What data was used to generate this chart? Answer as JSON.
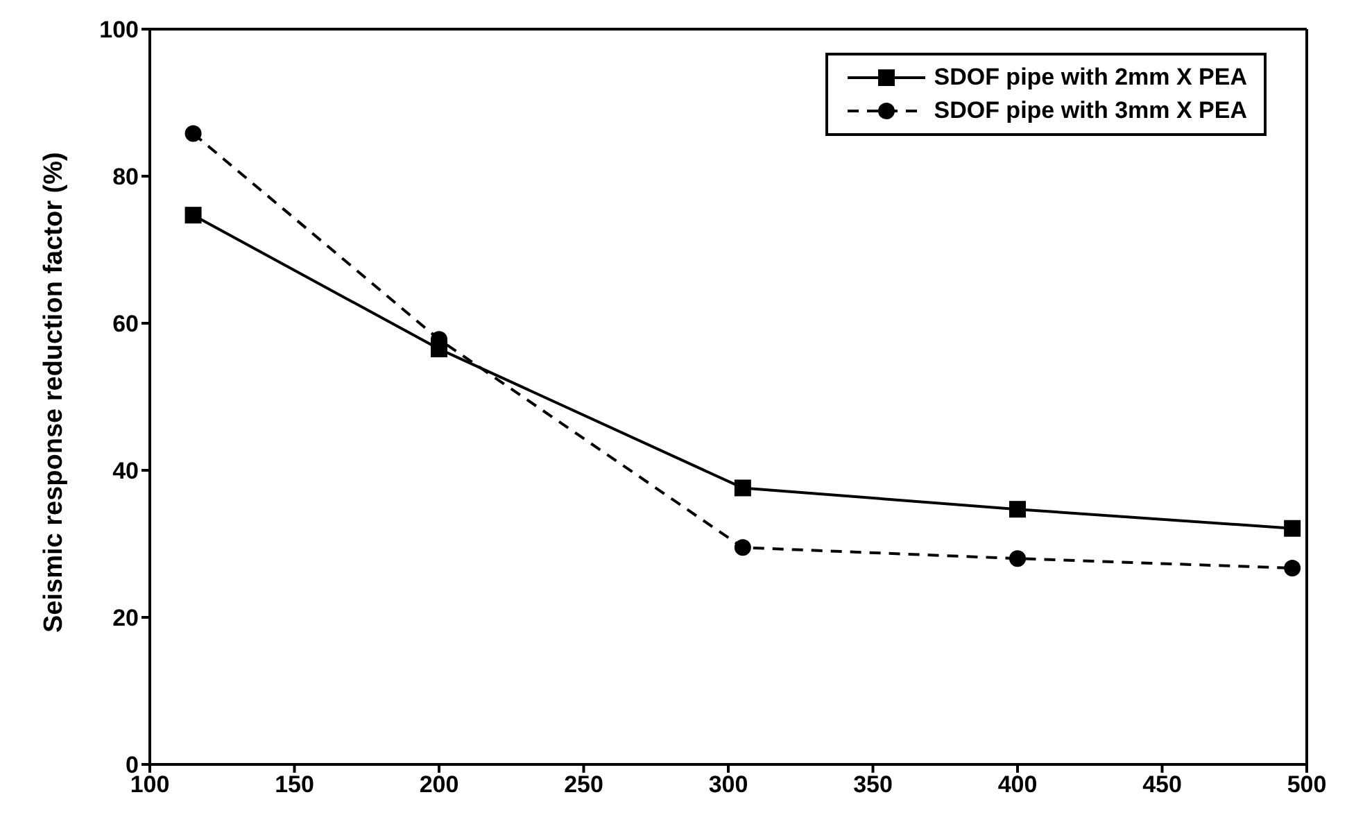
{
  "chart_data": {
    "type": "line",
    "ylabel": "Seismic response reduction factor (%)",
    "x": [
      115,
      200,
      305,
      400,
      495
    ],
    "series": [
      {
        "name": "SDOF pipe with 2mm X PEA",
        "color": "#000000",
        "values": [
          74.7,
          56.5,
          37.6,
          34.7,
          32.1
        ],
        "marker": "square",
        "line_style": "solid"
      },
      {
        "name": "SDOF pipe with 3mm X PEA",
        "color": "#000000",
        "values": [
          85.8,
          57.8,
          29.5,
          28.0,
          26.7
        ],
        "marker": "circle",
        "line_style": "dashed"
      }
    ],
    "xlim": [
      100,
      500
    ],
    "xticks": [
      100,
      150,
      200,
      250,
      300,
      350,
      400,
      450,
      500
    ],
    "ylim": [
      0,
      100
    ],
    "yticks": [
      0,
      20,
      40,
      60,
      80,
      100
    ],
    "grid": false,
    "legend": "top right"
  }
}
